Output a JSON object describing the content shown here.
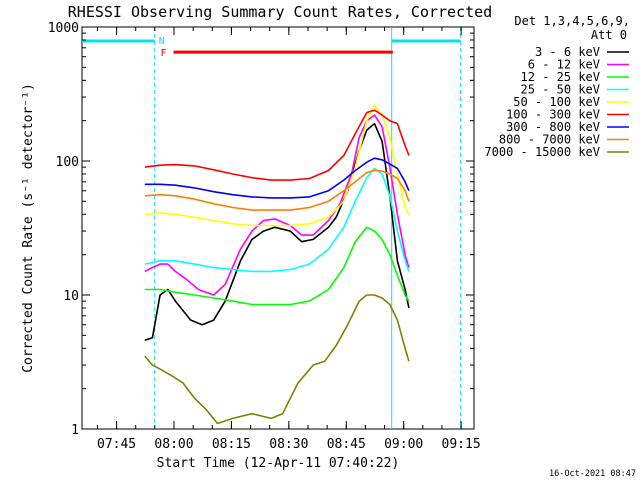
{
  "chart_data": {
    "type": "line",
    "title": "RHESSI Observing Summary Count Rates, Corrected",
    "xlabel": "Start Time (12-Apr-11 07:40:22)",
    "ylabel": "Corrected Count Rate (s⁻¹ detector⁻¹)",
    "yscale": "log",
    "ylim": [
      1,
      1000
    ],
    "xlim_minutes": [
      -4.4,
      98
    ],
    "x_tick_labels": [
      "07:45",
      "08:00",
      "08:15",
      "08:30",
      "08:45",
      "09:00",
      "09:15"
    ],
    "y_tick_labels": [
      "1",
      "10",
      "100",
      "1000"
    ],
    "legend_title": [
      "Det 1,3,4,5,6,9,",
      "Att 0"
    ],
    "legend_position": "right",
    "timestamp": "16-Oct-2021 08:47",
    "annotations": {
      "night_label": "N",
      "flare_label": "F"
    },
    "night_bars": [
      {
        "start": -4.4,
        "end": 14.6
      },
      {
        "start": 76.5,
        "end": 94.5
      }
    ],
    "flare_bar": {
      "start": 19.5,
      "end": 76.8,
      "level": 650
    },
    "series": [
      {
        "name": "3 - 6 keV",
        "color": "#000000",
        "x": [
          12,
          14,
          16,
          18,
          20,
          24,
          27,
          30,
          33,
          37,
          40,
          43,
          46,
          50,
          53,
          56,
          60,
          62,
          65,
          68,
          70,
          72,
          74,
          76,
          78,
          80,
          81
        ],
        "y": [
          4.6,
          4.8,
          10,
          11,
          9,
          6.5,
          6,
          6.5,
          9,
          18,
          26,
          30,
          32,
          30,
          25,
          26,
          32,
          38,
          60,
          120,
          170,
          190,
          140,
          55,
          18,
          11,
          8
        ]
      },
      {
        "name": "6 - 12 keV",
        "color": "#ff00ff",
        "x": [
          12,
          14,
          16,
          18,
          20,
          23,
          26,
          30,
          33,
          37,
          40,
          43,
          46,
          50,
          53,
          56,
          60,
          63,
          66,
          68,
          70,
          72,
          74,
          76,
          78,
          80,
          81
        ],
        "y": [
          15,
          16,
          17,
          17,
          15,
          13,
          11,
          10,
          12,
          22,
          30,
          36,
          37,
          33,
          28,
          28,
          36,
          48,
          80,
          150,
          200,
          220,
          180,
          90,
          40,
          20,
          16
        ]
      },
      {
        "name": "12 - 25 keV",
        "color": "#00ff00",
        "x": [
          12,
          16,
          20,
          25,
          30,
          35,
          40,
          45,
          50,
          55,
          60,
          64,
          67,
          70,
          72,
          74,
          76,
          78,
          80,
          81
        ],
        "y": [
          11,
          11,
          10.5,
          10,
          9.5,
          9,
          8.5,
          8.5,
          8.5,
          9,
          11,
          16,
          25,
          32,
          30,
          26,
          20,
          14,
          10,
          9
        ]
      },
      {
        "name": "25 - 50 keV",
        "color": "#00ffff",
        "x": [
          12,
          16,
          20,
          25,
          30,
          35,
          40,
          45,
          50,
          55,
          60,
          64,
          67,
          70,
          72,
          74,
          76,
          78,
          80,
          81
        ],
        "y": [
          17,
          18,
          18,
          17,
          16,
          15.5,
          15,
          15,
          15.5,
          17,
          22,
          32,
          50,
          75,
          88,
          80,
          55,
          30,
          18,
          15
        ]
      },
      {
        "name": "50 - 100 keV",
        "color": "#ffff00",
        "x": [
          12,
          16,
          20,
          25,
          30,
          35,
          40,
          45,
          50,
          55,
          60,
          64,
          67,
          70,
          72,
          74,
          76,
          78,
          80,
          81
        ],
        "y": [
          40,
          41,
          40,
          38,
          36,
          34,
          33,
          33,
          33,
          34,
          38,
          50,
          90,
          200,
          260,
          220,
          150,
          80,
          45,
          40
        ]
      },
      {
        "name": "100 - 300 keV",
        "color": "#ff0000",
        "x": [
          12,
          16,
          20,
          25,
          30,
          35,
          40,
          45,
          50,
          55,
          60,
          64,
          67,
          70,
          72,
          74,
          76,
          78,
          80,
          81
        ],
        "y": [
          90,
          93,
          94,
          92,
          86,
          80,
          75,
          72,
          72,
          74,
          85,
          110,
          160,
          230,
          240,
          220,
          200,
          190,
          130,
          110
        ]
      },
      {
        "name": "300 - 800 keV",
        "color": "#0000ff",
        "x": [
          12,
          16,
          20,
          25,
          30,
          35,
          40,
          45,
          50,
          55,
          60,
          64,
          67,
          70,
          72,
          74,
          76,
          78,
          80,
          81
        ],
        "y": [
          67,
          67,
          66,
          63,
          59,
          56,
          54,
          53,
          53,
          54,
          60,
          72,
          85,
          98,
          105,
          102,
          95,
          88,
          70,
          60
        ]
      },
      {
        "name": "800 - 7000 keV",
        "color": "#ff8000",
        "x": [
          12,
          16,
          20,
          25,
          30,
          35,
          40,
          45,
          50,
          55,
          60,
          64,
          67,
          70,
          72,
          74,
          76,
          78,
          80,
          81
        ],
        "y": [
          55,
          56,
          55,
          52,
          48,
          45,
          43,
          43,
          43,
          45,
          50,
          60,
          70,
          82,
          85,
          84,
          80,
          74,
          60,
          50
        ]
      },
      {
        "name": "7000 - 15000 keV",
        "color": "#808000",
        "x": [
          12,
          14,
          16,
          19,
          22,
          25,
          28,
          31,
          35,
          40,
          45,
          48,
          52,
          56,
          59,
          62,
          65,
          68,
          70,
          72,
          74,
          76,
          78,
          80,
          81
        ],
        "y": [
          3.5,
          3,
          2.8,
          2.5,
          2.2,
          1.7,
          1.4,
          1.1,
          1.2,
          1.3,
          1.2,
          1.3,
          2.2,
          3,
          3.2,
          4.2,
          6,
          9,
          10,
          10,
          9.5,
          8.5,
          6.5,
          4,
          3.2
        ]
      }
    ]
  }
}
